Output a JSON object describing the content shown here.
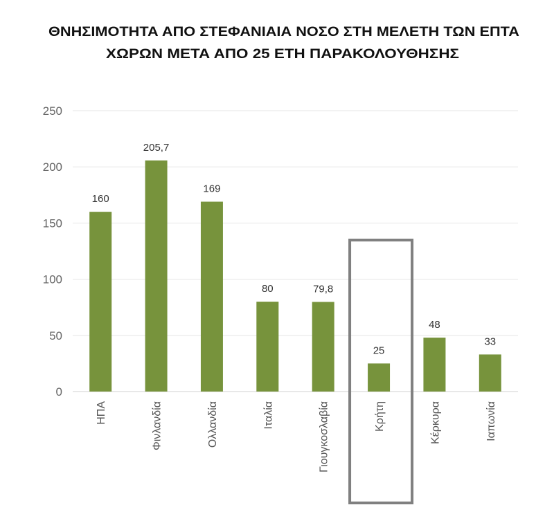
{
  "chart_data": {
    "type": "bar",
    "title_lines": [
      "ΘΝΗΣΙΜΟΤΗΤΑ ΑΠΟ ΣΤΕΦΑΝΙΑΙΑ ΝΟΣΟ ΣΤΗ ΜΕΛΕΤΗ ΤΩΝ ΕΠΤΑ",
      "ΧΩΡΩΝ ΜΕΤΑ ΑΠΟ 25 ΕΤΗ ΠΑΡΑΚΟΛΟΥΘΗΣΗΣ"
    ],
    "categories": [
      "ΗΠΑ",
      "Φινλανδία",
      "Ολλανδία",
      "Ιταλία",
      "Γιουγκοσλαβία",
      "Κρήτη",
      "Κέρκυρα",
      "Ιαπωνία"
    ],
    "values": [
      160,
      205.7,
      169,
      80,
      79.8,
      25,
      48,
      33
    ],
    "data_labels": [
      "160",
      "205,7",
      "169",
      "80",
      "79,8",
      "25",
      "48",
      "33"
    ],
    "yticks": [
      "0",
      "50",
      "100",
      "150",
      "200",
      "250"
    ],
    "ytick_values": [
      0,
      50,
      100,
      150,
      200,
      250
    ],
    "ylim": [
      0,
      250
    ],
    "xlabel": "",
    "ylabel": "",
    "grid": true,
    "highlighted_category": "Κρήτη",
    "bar_color": "#77933c",
    "highlight_box_color": "#808080"
  }
}
